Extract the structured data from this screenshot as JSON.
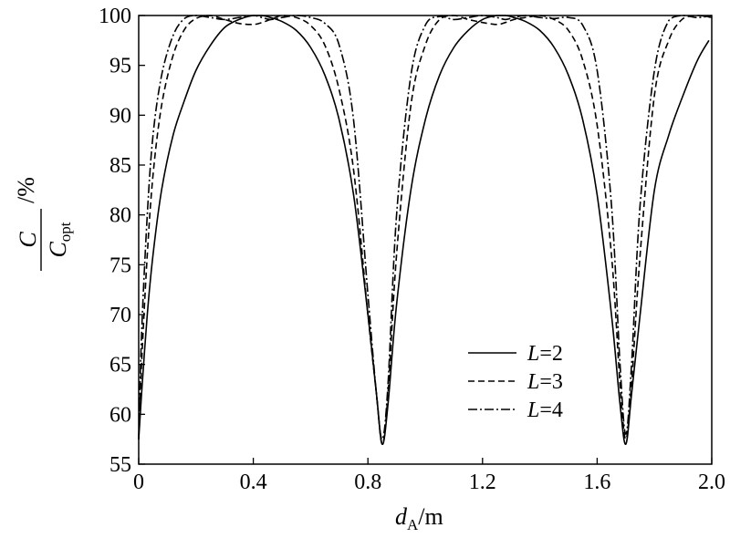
{
  "chart_data": {
    "type": "line",
    "xlabel_main": "d",
    "xlabel_sub": "A",
    "xlabel_unit": "/m",
    "ylabel_num": "C",
    "ylabel_den_main": "C",
    "ylabel_den_sub": "opt",
    "ylabel_unit": "/%",
    "xlim": [
      0,
      2.0
    ],
    "ylim": [
      55,
      100
    ],
    "x_ticks": [
      "0",
      "0.4",
      "0.8",
      "1.2",
      "1.6",
      "2.0"
    ],
    "x_tick_values": [
      0,
      0.4,
      0.8,
      1.2,
      1.6,
      2.0
    ],
    "y_ticks": [
      "55",
      "60",
      "65",
      "70",
      "75",
      "80",
      "85",
      "90",
      "95",
      "100"
    ],
    "y_tick_values": [
      55,
      60,
      65,
      70,
      75,
      80,
      85,
      90,
      95,
      100
    ],
    "grid": false,
    "legend_position": "lower-right",
    "series": [
      {
        "name_var": "L",
        "name_val": "=2",
        "dash": "solid",
        "x": [
          0,
          0.01,
          0.03,
          0.05,
          0.08,
          0.12,
          0.16,
          0.2,
          0.25,
          0.3,
          0.35,
          0.4,
          0.43,
          0.46,
          0.5,
          0.55,
          0.6,
          0.65,
          0.7,
          0.75,
          0.8,
          0.83,
          0.85,
          0.87,
          0.9,
          0.95,
          1.0,
          1.05,
          1.1,
          1.15,
          1.2,
          1.25,
          1.28,
          1.31,
          1.35,
          1.4,
          1.45,
          1.5,
          1.55,
          1.6,
          1.65,
          1.68,
          1.7,
          1.72,
          1.75,
          1.8,
          1.85,
          1.9,
          1.95,
          1.99
        ],
        "y": [
          57.5,
          62,
          70,
          76,
          82.5,
          88,
          91.5,
          94.5,
          97,
          98.8,
          99.6,
          100,
          100,
          99.8,
          99.4,
          98.5,
          96.8,
          94,
          89.5,
          82,
          70,
          62,
          57,
          61,
          71,
          82.5,
          89.5,
          94,
          96.8,
          98.5,
          99.6,
          100,
          100,
          99.8,
          99.4,
          98.5,
          96.8,
          94,
          89.5,
          82,
          70,
          61,
          57,
          62,
          70,
          82.5,
          88,
          92,
          95.5,
          97.5
        ]
      },
      {
        "name_var": "L",
        "name_val": "=3",
        "dash": "dashed",
        "x": [
          0,
          0.01,
          0.03,
          0.05,
          0.08,
          0.12,
          0.16,
          0.2,
          0.25,
          0.3,
          0.35,
          0.4,
          0.43,
          0.46,
          0.5,
          0.55,
          0.6,
          0.65,
          0.7,
          0.75,
          0.8,
          0.83,
          0.85,
          0.87,
          0.9,
          0.95,
          1.0,
          1.05,
          1.1,
          1.15,
          1.2,
          1.25,
          1.28,
          1.31,
          1.35,
          1.4,
          1.45,
          1.5,
          1.55,
          1.6,
          1.65,
          1.68,
          1.7,
          1.72,
          1.75,
          1.8,
          1.85,
          1.9,
          1.95,
          2.0
        ],
        "y": [
          57.5,
          65,
          76,
          84,
          91,
          96,
          98.6,
          99.7,
          100,
          99.6,
          99.2,
          99.1,
          99.3,
          99.6,
          100,
          99.8,
          99,
          97,
          92.5,
          84.5,
          70,
          62,
          57,
          62,
          76,
          91,
          97,
          99.6,
          100,
          99.6,
          99.3,
          99.1,
          99.3,
          99.6,
          99.8,
          100,
          99.6,
          98.5,
          95.5,
          89,
          76,
          63,
          57.5,
          63,
          76,
          92,
          97.5,
          99.7,
          100,
          99.8
        ]
      },
      {
        "name_var": "L",
        "name_val": "=4",
        "dash": "dashdot",
        "x": [
          0,
          0.01,
          0.03,
          0.05,
          0.08,
          0.12,
          0.16,
          0.2,
          0.25,
          0.3,
          0.35,
          0.4,
          0.43,
          0.46,
          0.5,
          0.55,
          0.6,
          0.65,
          0.7,
          0.75,
          0.8,
          0.83,
          0.85,
          0.87,
          0.9,
          0.95,
          1.0,
          1.05,
          1.1,
          1.15,
          1.2,
          1.25,
          1.28,
          1.31,
          1.35,
          1.4,
          1.45,
          1.5,
          1.55,
          1.6,
          1.65,
          1.68,
          1.7,
          1.72,
          1.75,
          1.8,
          1.85,
          1.9,
          1.95,
          2.0
        ],
        "y": [
          57.5,
          68,
          80,
          88,
          94,
          98,
          99.7,
          100,
          99.8,
          99.6,
          99.8,
          100,
          99.8,
          99.6,
          99.8,
          100,
          99.8,
          99.2,
          97,
          89.5,
          72,
          62,
          57.5,
          63,
          80,
          94,
          99,
          99.9,
          99.6,
          99.8,
          100,
          99.8,
          99.6,
          99.8,
          100,
          99.8,
          99.7,
          99.8,
          99,
          94.5,
          81,
          65,
          58,
          65,
          81,
          94.5,
          99.5,
          100,
          99.8,
          100
        ]
      }
    ]
  }
}
